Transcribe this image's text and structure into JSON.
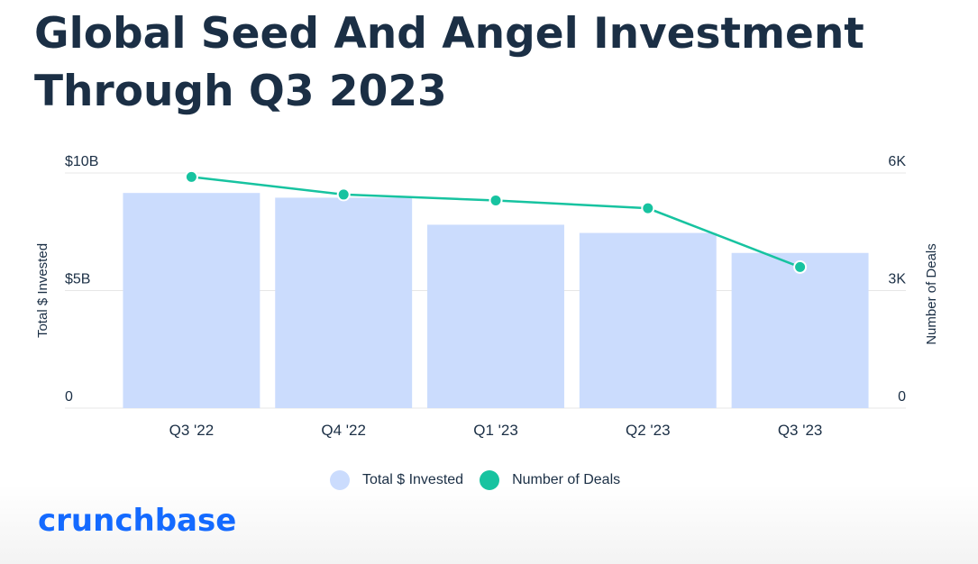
{
  "title": "Global Seed And Angel Investment Through Q3 2023",
  "logo": "crunchbase",
  "colors": {
    "bar": "#cbdcfd",
    "line": "#17c3a0",
    "title": "#1b2f45",
    "logo": "#146aff"
  },
  "legend": {
    "items": [
      {
        "label": "Total $ Invested",
        "color": "#cbdcfd"
      },
      {
        "label": "Number of Deals",
        "color": "#17c3a0"
      }
    ]
  },
  "chart_data": {
    "type": "bar",
    "categories": [
      "Q3 '22",
      "Q4 '22",
      "Q1 '23",
      "Q2 '23",
      "Q3 '23"
    ],
    "series": [
      {
        "name": "Total $ Invested",
        "type": "bar",
        "axis": "left",
        "values": [
          9.15,
          8.95,
          7.8,
          7.45,
          6.6
        ]
      },
      {
        "name": "Number of Deals",
        "type": "line",
        "axis": "right",
        "values": [
          5900,
          5450,
          5300,
          5100,
          3600
        ]
      }
    ],
    "ylabel": "Total $ Invested",
    "y2label": "Number of Deals",
    "ylim": [
      0,
      10
    ],
    "y2lim": [
      0,
      6000
    ],
    "yticks": [
      "0",
      "$5B",
      "$10B"
    ],
    "y2ticks": [
      "0",
      "3K",
      "6K"
    ],
    "grid": true,
    "legend_position": "bottom"
  }
}
